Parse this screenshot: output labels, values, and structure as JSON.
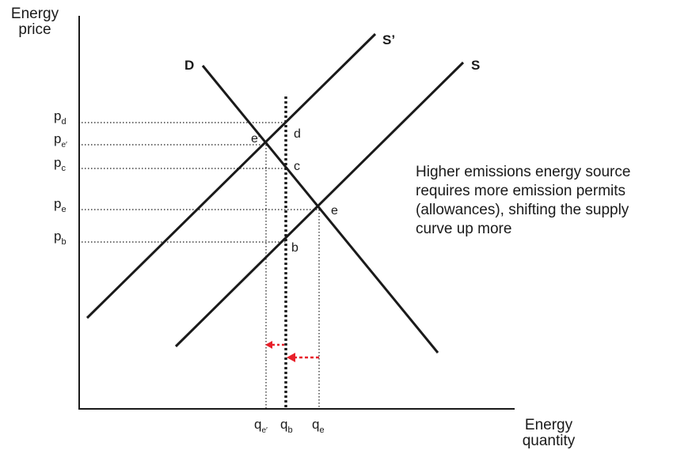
{
  "axes": {
    "y_title_line1": "Energy",
    "y_title_line2": "price",
    "x_title_line1": "Energy",
    "x_title_line2": "quantity"
  },
  "curves": {
    "demand": "D",
    "supply": "S",
    "supply_shifted": "S’"
  },
  "price_labels": [
    {
      "base": "p",
      "sub": "d"
    },
    {
      "base": "p",
      "sub": "e′"
    },
    {
      "base": "p",
      "sub": "c"
    },
    {
      "base": "p",
      "sub": "e"
    },
    {
      "base": "p",
      "sub": "b"
    }
  ],
  "quantity_labels": [
    {
      "base": "q",
      "sub": "e′"
    },
    {
      "base": "q",
      "sub": "b"
    },
    {
      "base": "q",
      "sub": "e"
    }
  ],
  "points": {
    "e_prime": "e′",
    "d": "d",
    "c": "c",
    "e": "e",
    "b": "b"
  },
  "annotation": [
    "Higher emissions energy source",
    "requires more emission permits",
    "(allowances), shifting the supply",
    "curve up more"
  ],
  "colors": {
    "line": "#1a1a1a",
    "shift_arrow": "#e8202a"
  }
}
